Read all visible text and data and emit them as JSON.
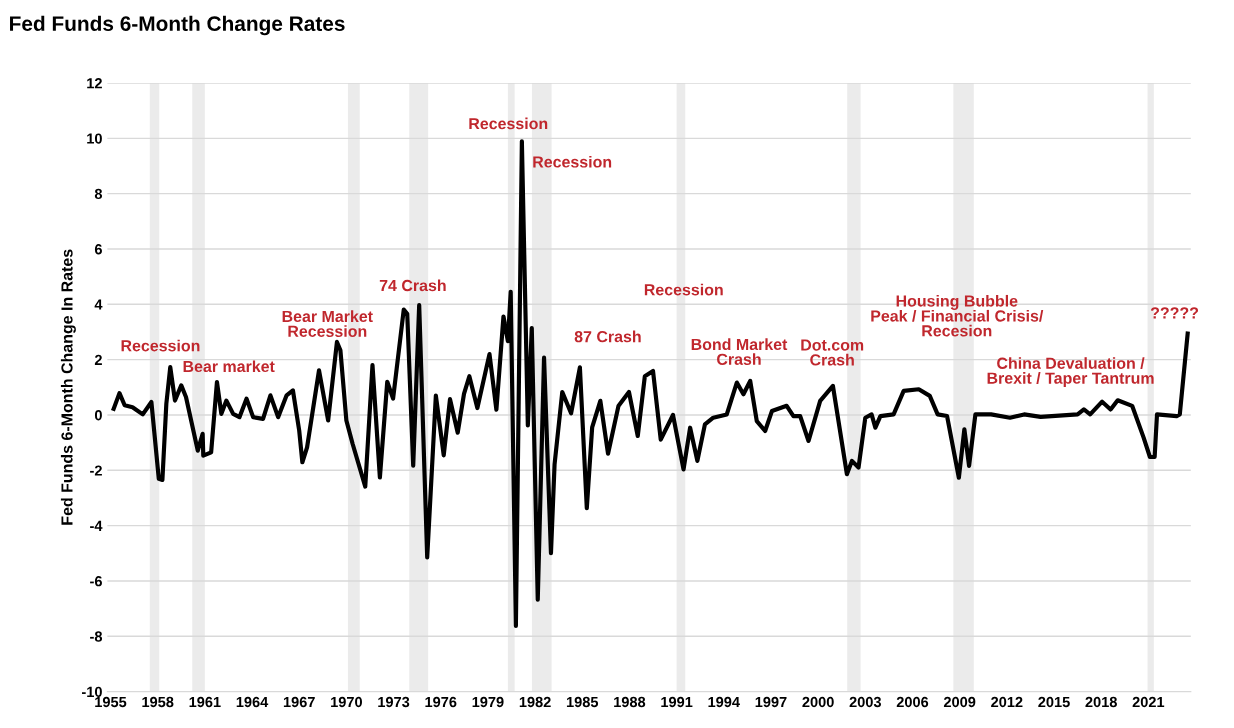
{
  "chart_data": {
    "type": "line",
    "title": "Fed Funds 6-Month Change Rates",
    "ylabel": "Fed Funds 6-Month Change In Rates",
    "x": [
      1955.2,
      1955.57,
      1955.9,
      1956.4,
      1957.05,
      1957.6,
      1958.07,
      1958.3,
      1958.55,
      1958.8,
      1959.1,
      1959.5,
      1959.8,
      1960.55,
      1960.86,
      1960.9,
      1961.4,
      1961.77,
      1962.05,
      1962.37,
      1962.8,
      1963.2,
      1963.65,
      1964.07,
      1964.7,
      1965.17,
      1965.66,
      1966.2,
      1966.6,
      1967.0,
      1967.2,
      1967.5,
      1968.26,
      1968.84,
      1969.4,
      1969.62,
      1970.0,
      1970.4,
      1971.2,
      1971.66,
      1972.13,
      1972.6,
      1972.97,
      1973.65,
      1973.87,
      1974.25,
      1974.63,
      1975.14,
      1975.69,
      1976.19,
      1976.59,
      1977.08,
      1977.48,
      1977.82,
      1978.33,
      1979.1,
      1979.54,
      1979.99,
      1980.27,
      1980.45,
      1980.78,
      1981.16,
      1981.54,
      1981.79,
      1982.17,
      1982.57,
      1983.01,
      1983.24,
      1983.73,
      1984.29,
      1984.85,
      1985.29,
      1985.63,
      1986.15,
      1986.64,
      1987.3,
      1987.97,
      1988.53,
      1988.98,
      1989.5,
      1989.99,
      1990.77,
      1991.44,
      1991.86,
      1992.32,
      1992.8,
      1993.33,
      1994.19,
      1994.83,
      1995.25,
      1995.68,
      1996.1,
      1996.63,
      1997.06,
      1998.0,
      1998.43,
      1998.86,
      1999.39,
      2000.13,
      2000.94,
      2001.83,
      2002.15,
      2002.57,
      2003.0,
      2003.4,
      2003.64,
      2003.96,
      2004.8,
      2005.44,
      2006.4,
      2007.1,
      2007.6,
      2008.2,
      2008.95,
      2009.3,
      2009.6,
      2010.0,
      2011.0,
      2012.2,
      2013.1,
      2014.15,
      2016.5,
      2016.9,
      2017.3,
      2018.06,
      2018.6,
      2019.05,
      2019.97,
      2020.7,
      2021.1,
      2021.4,
      2021.55,
      2022.8,
      2023.0,
      2023.5
    ],
    "series": [
      {
        "color": "#000000",
        "values": [
          0.22,
          0.79,
          0.35,
          0.28,
          0.02,
          0.47,
          -2.31,
          -2.35,
          0.4,
          1.73,
          0.52,
          1.07,
          0.65,
          -1.29,
          -0.68,
          -1.47,
          -1.35,
          1.19,
          0.04,
          0.52,
          0.04,
          -0.08,
          0.59,
          -0.08,
          -0.14,
          0.71,
          -0.08,
          0.71,
          0.89,
          -0.56,
          -1.71,
          -1.17,
          1.61,
          -0.2,
          2.64,
          2.34,
          -0.2,
          -1.05,
          -2.59,
          1.8,
          -2.26,
          1.2,
          0.59,
          3.81,
          3.66,
          -1.83,
          3.97,
          -5.15,
          0.7,
          -1.46,
          0.57,
          -0.64,
          0.76,
          1.4,
          0.25,
          2.2,
          0.19,
          3.56,
          2.67,
          4.45,
          -7.63,
          9.89,
          -0.38,
          3.14,
          -6.68,
          2.07,
          -5.0,
          -1.78,
          0.83,
          0.06,
          1.72,
          -3.37,
          -0.45,
          0.51,
          -1.4,
          0.32,
          0.83,
          -0.76,
          1.4,
          1.59,
          -0.89,
          0.0,
          -1.97,
          -0.46,
          -1.66,
          -0.34,
          -0.1,
          0.02,
          1.17,
          0.75,
          1.23,
          -0.22,
          -0.58,
          0.14,
          0.33,
          -0.04,
          -0.04,
          -0.94,
          0.51,
          1.05,
          -2.14,
          -1.66,
          -1.9,
          -0.1,
          0.02,
          -0.46,
          -0.04,
          0.02,
          0.87,
          0.93,
          0.69,
          0.02,
          -0.04,
          -2.27,
          -0.52,
          -1.84,
          0.02,
          0.02,
          -0.1,
          0.02,
          -0.07,
          0.02,
          0.2,
          0.02,
          0.48,
          0.2,
          0.53,
          0.33,
          -0.82,
          -1.52,
          -1.52,
          0.02,
          -0.04,
          0.02,
          2.94
        ]
      }
    ],
    "xlim": [
      1954.8,
      2023.7
    ],
    "xticks": [
      1955,
      1958,
      1961,
      1964,
      1967,
      1970,
      1973,
      1976,
      1979,
      1982,
      1985,
      1988,
      1991,
      1994,
      1997,
      2000,
      2003,
      2006,
      2009,
      2012,
      2015,
      2018,
      2021
    ],
    "ylim": [
      -10,
      12
    ],
    "yticks": [
      -10,
      -8,
      -6,
      -4,
      -2,
      0,
      2,
      4,
      6,
      8,
      10,
      12
    ],
    "grid": "y",
    "marker": "none",
    "line_style": "solid",
    "bands": [
      {
        "axis": "x",
        "from": 1957.5,
        "to": 1958.1,
        "color": "#ebebeb"
      },
      {
        "axis": "x",
        "from": 1960.2,
        "to": 1961.0,
        "color": "#ebebeb"
      },
      {
        "axis": "x",
        "from": 1970.1,
        "to": 1970.85,
        "color": "#ebebeb"
      },
      {
        "axis": "x",
        "from": 1974.0,
        "to": 1975.2,
        "color": "#ebebeb"
      },
      {
        "axis": "x",
        "from": 1980.27,
        "to": 1980.7,
        "color": "#ebebeb"
      },
      {
        "axis": "x",
        "from": 1981.8,
        "to": 1983.05,
        "color": "#ebebeb"
      },
      {
        "axis": "x",
        "from": 1991.0,
        "to": 1991.55,
        "color": "#ebebeb"
      },
      {
        "axis": "x",
        "from": 2001.85,
        "to": 2002.7,
        "color": "#ebebeb"
      },
      {
        "axis": "x",
        "from": 2008.6,
        "to": 2009.9,
        "color": "#ebebeb"
      },
      {
        "axis": "x",
        "from": 2020.95,
        "to": 2021.35,
        "color": "#ebebeb"
      }
    ],
    "annotations": [
      "Recession",
      "Bear market",
      "Bear Market\nRecession",
      "74 Crash",
      "Recession",
      "Recession",
      "87 Crash",
      "Recession",
      "Bond Market\nCrash",
      "Dot.com\nCrash",
      "Housing Bubble\nPeak / Financial Crisis/\nRecesion",
      "China Devaluation /\nBrexit / Taper Tantrum",
      "?????"
    ]
  }
}
